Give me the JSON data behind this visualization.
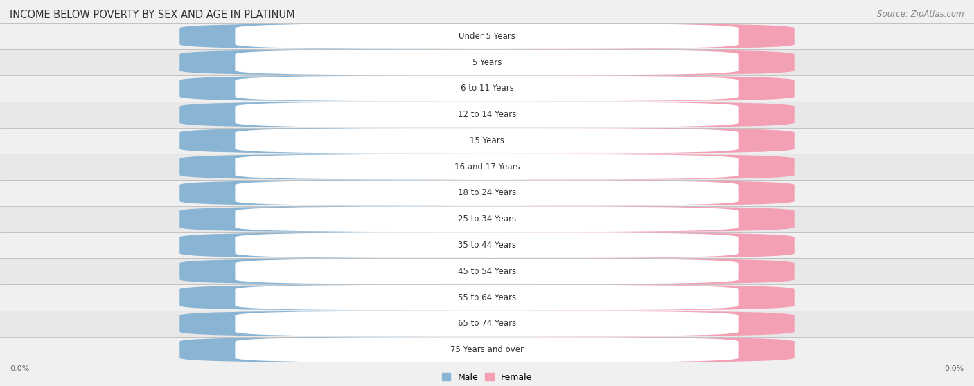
{
  "title": "INCOME BELOW POVERTY BY SEX AND AGE IN PLATINUM",
  "source_text": "Source: ZipAtlas.com",
  "categories": [
    "Under 5 Years",
    "5 Years",
    "6 to 11 Years",
    "12 to 14 Years",
    "15 Years",
    "16 and 17 Years",
    "18 to 24 Years",
    "25 to 34 Years",
    "35 to 44 Years",
    "45 to 54 Years",
    "55 to 64 Years",
    "65 to 74 Years",
    "75 Years and over"
  ],
  "male_values": [
    0.0,
    0.0,
    0.0,
    0.0,
    0.0,
    0.0,
    0.0,
    0.0,
    0.0,
    0.0,
    0.0,
    0.0,
    0.0
  ],
  "female_values": [
    0.0,
    0.0,
    0.0,
    0.0,
    0.0,
    0.0,
    0.0,
    0.0,
    0.0,
    0.0,
    0.0,
    0.0,
    0.0
  ],
  "male_color": "#8ab4d4",
  "female_color": "#f4a0b4",
  "male_label": "Male",
  "female_label": "Female",
  "row_bg_even": "#f0f0f0",
  "row_bg_odd": "#e8e8e8",
  "fig_bg": "#f0f0f0",
  "title_fontsize": 10.5,
  "source_fontsize": 8.5,
  "label_fontsize": 8.5,
  "value_fontsize": 7.5,
  "axis_label_fontsize": 8,
  "legend_fontsize": 9
}
